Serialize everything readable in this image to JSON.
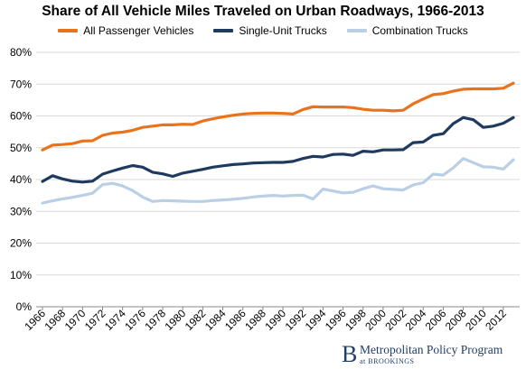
{
  "chart_data": {
    "type": "line",
    "title": "Share of All Vehicle Miles Traveled on Urban Roadways, 1966-2013",
    "xlabel": "",
    "ylabel": "",
    "ylim": [
      0,
      80
    ],
    "yticks": [
      "0%",
      "10%",
      "20%",
      "30%",
      "40%",
      "50%",
      "60%",
      "70%",
      "80%"
    ],
    "grid": true,
    "legend_position": "top",
    "x": [
      1966,
      1967,
      1968,
      1969,
      1970,
      1971,
      1972,
      1973,
      1974,
      1975,
      1976,
      1977,
      1978,
      1979,
      1980,
      1981,
      1982,
      1983,
      1984,
      1985,
      1986,
      1987,
      1988,
      1989,
      1990,
      1991,
      1992,
      1993,
      1994,
      1995,
      1996,
      1997,
      1998,
      1999,
      2000,
      2001,
      2002,
      2003,
      2004,
      2005,
      2006,
      2007,
      2008,
      2009,
      2010,
      2011,
      2012,
      2013
    ],
    "xtick_labels": [
      "1966",
      "1968",
      "1970",
      "1972",
      "1974",
      "1976",
      "1978",
      "1980",
      "1982",
      "1984",
      "1986",
      "1988",
      "1990",
      "1992",
      "1994",
      "1996",
      "1998",
      "2000",
      "2002",
      "2004",
      "2006",
      "2008",
      "2010",
      "2012"
    ],
    "series": [
      {
        "name": "All Passenger Vehicles",
        "color": "#e8731a",
        "values": [
          49.3,
          50.8,
          51.0,
          51.3,
          52.1,
          52.2,
          53.9,
          54.6,
          54.9,
          55.5,
          56.4,
          56.8,
          57.2,
          57.2,
          57.4,
          57.3,
          58.4,
          59.1,
          59.7,
          60.2,
          60.6,
          60.8,
          60.9,
          60.9,
          60.8,
          60.6,
          62.0,
          62.9,
          62.8,
          62.8,
          62.8,
          62.6,
          62.1,
          61.8,
          61.8,
          61.6,
          61.8,
          63.8,
          65.3,
          66.7,
          67.0,
          67.8,
          68.4,
          68.5,
          68.5,
          68.5,
          68.7,
          70.3
        ]
      },
      {
        "name": "Single-Unit Trucks",
        "color": "#1f3a5f",
        "values": [
          39.4,
          41.2,
          40.2,
          39.5,
          39.2,
          39.5,
          41.7,
          42.7,
          43.6,
          44.4,
          43.9,
          42.3,
          41.8,
          41.0,
          42.0,
          42.6,
          43.2,
          43.9,
          44.3,
          44.7,
          44.9,
          45.2,
          45.3,
          45.4,
          45.4,
          45.7,
          46.6,
          47.3,
          47.1,
          47.9,
          48.0,
          47.6,
          48.9,
          48.7,
          49.3,
          49.3,
          49.4,
          51.6,
          51.8,
          53.9,
          54.4,
          57.6,
          59.5,
          58.8,
          56.4,
          56.8,
          57.7,
          59.5
        ]
      },
      {
        "name": "Combination Trucks",
        "color": "#b9cfe6",
        "values": [
          32.6,
          33.3,
          33.9,
          34.4,
          35.0,
          35.7,
          38.4,
          38.8,
          38.0,
          36.5,
          34.5,
          33.1,
          33.4,
          33.3,
          33.2,
          33.1,
          33.1,
          33.4,
          33.6,
          33.8,
          34.1,
          34.5,
          34.8,
          35.0,
          34.8,
          35.0,
          35.1,
          33.9,
          37.0,
          36.4,
          35.8,
          36.0,
          37.1,
          38.0,
          37.1,
          36.9,
          36.7,
          38.3,
          39.0,
          41.7,
          41.4,
          43.7,
          46.6,
          45.3,
          44.0,
          43.9,
          43.3,
          46.2
        ]
      }
    ]
  },
  "brand": {
    "logo_letter": "B",
    "name": "Metropolitan Policy Program",
    "sub": "at BROOKINGS"
  }
}
